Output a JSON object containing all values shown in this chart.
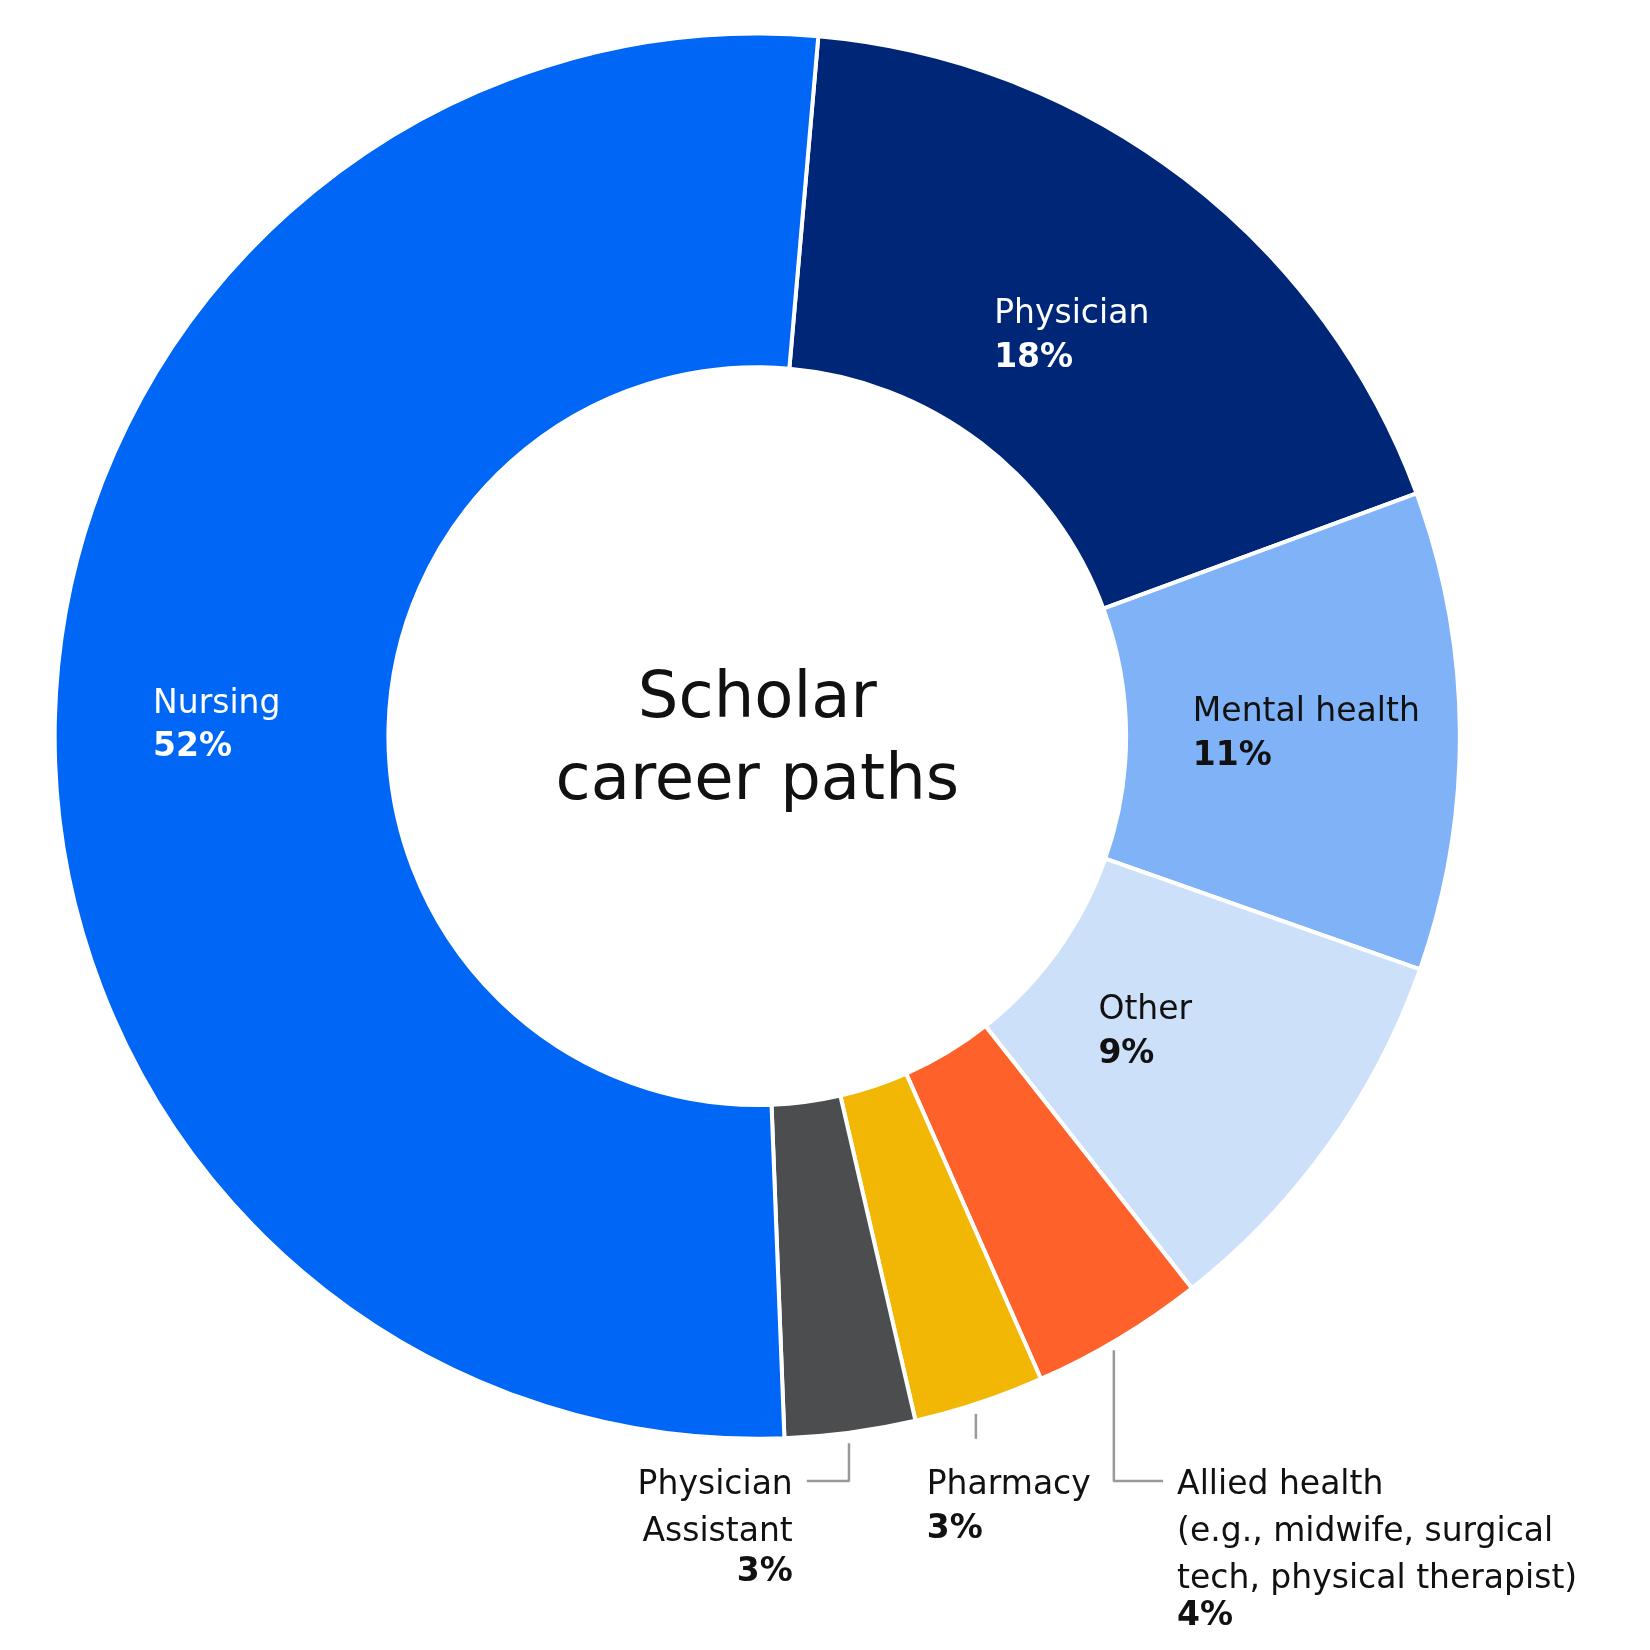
{
  "chart_data": {
    "type": "donut",
    "title": "Scholar\ncareer paths",
    "categories": [
      "Physician",
      "Mental health",
      "Other",
      "Allied health\n(e.g., midwife, surgical\ntech, physical therapist)",
      "Pharmacy",
      "Physician\nAssistant",
      "Nursing"
    ],
    "values": [
      18,
      11,
      9,
      4,
      3,
      3,
      52
    ],
    "colors": [
      "#002677",
      "#7fb2f7",
      "#cde0fa",
      "#ff612b",
      "#f2b705",
      "#4b4d4f",
      "#0066f5"
    ],
    "value_labels": [
      "18%",
      "11%",
      "9%",
      "4%",
      "3%",
      "3%",
      "52%"
    ]
  }
}
